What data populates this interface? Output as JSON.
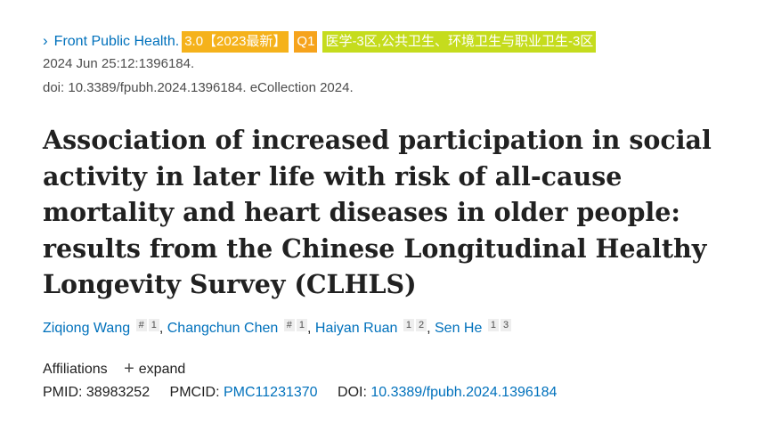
{
  "journal": {
    "chevron": "›",
    "name": "Front Public Health.",
    "impact_badge": "3.0【2023最新】",
    "quartile_badge": "Q1",
    "zone_badge": "医学-3区,公共卫生、环境卫生与职业卫生-3区",
    "colors": {
      "impact": "#f5b21b",
      "quartile": "#f6a31c",
      "zone": "#c5dc1d",
      "link": "#0071bc"
    }
  },
  "citation": {
    "date_line": "2024 Jun 25:12:1396184.",
    "doi_line": "doi: 10.3389/fpubh.2024.1396184. eCollection 2024."
  },
  "article": {
    "title": "Association of increased participation in social activity in later life with risk of all-cause mortality and heart diseases in older people: results from the Chinese Longitudinal Healthy Longevity Survey (CLHLS)"
  },
  "authors": [
    {
      "name": "Ziqiong Wang",
      "marks": [
        "#",
        "1"
      ]
    },
    {
      "name": "Changchun Chen",
      "marks": [
        "#",
        "1"
      ]
    },
    {
      "name": "Haiyan Ruan",
      "marks": [
        "1",
        "2"
      ]
    },
    {
      "name": "Sen He",
      "marks": [
        "1",
        "3"
      ]
    }
  ],
  "affiliations": {
    "label": "Affiliations",
    "expand_icon": "+",
    "expand_label": "expand"
  },
  "identifiers": {
    "pmid_label": "PMID:",
    "pmid": "38983252",
    "pmcid_label": "PMCID:",
    "pmcid": "PMC11231370",
    "doi_label": "DOI:",
    "doi": "10.3389/fpubh.2024.1396184"
  }
}
